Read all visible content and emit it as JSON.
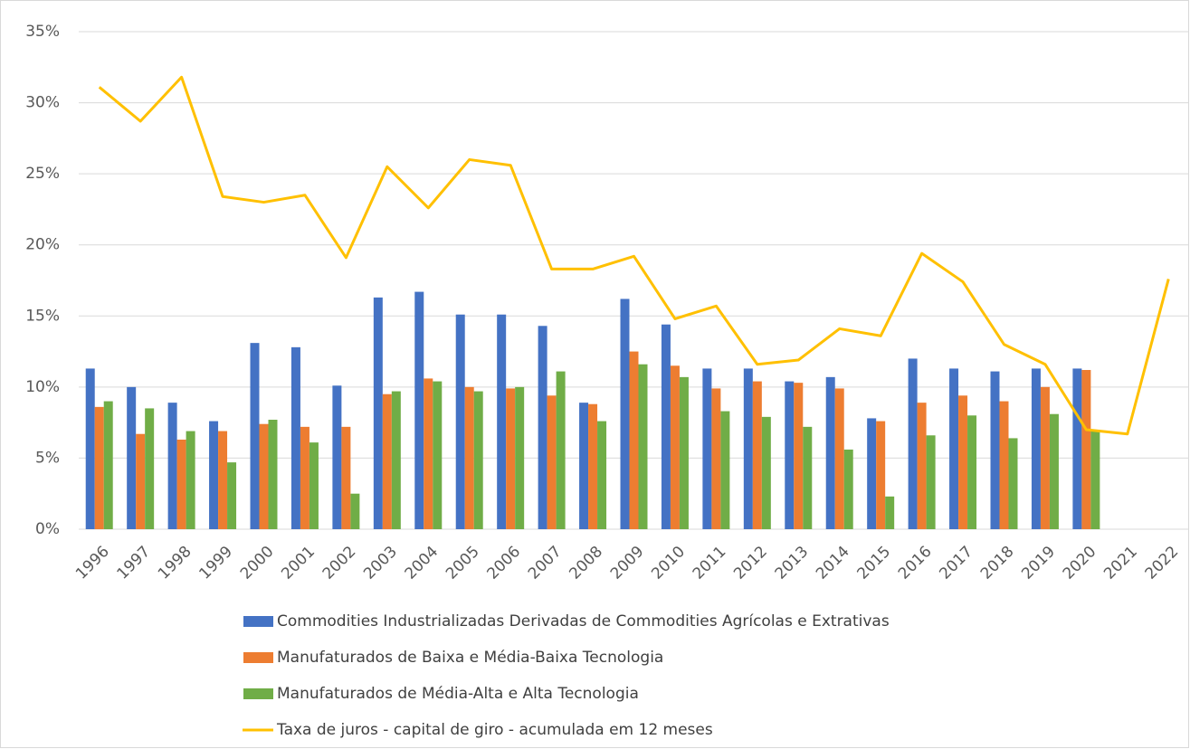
{
  "chart_data": {
    "type": "bar_line",
    "categories": [
      "1996",
      "1997",
      "1998",
      "1999",
      "2000",
      "2001",
      "2002",
      "2003",
      "2004",
      "2005",
      "2006",
      "2007",
      "2008",
      "2009",
      "2010",
      "2011",
      "2012",
      "2013",
      "2014",
      "2015",
      "2016",
      "2017",
      "2018",
      "2019",
      "2020",
      "2021",
      "2022"
    ],
    "series": [
      {
        "name": "Commodities Industrializadas Derivadas de Commodities Agrícolas e Extrativas",
        "color": "#4472c4",
        "kind": "bar",
        "values": [
          11.3,
          10.0,
          8.9,
          7.6,
          13.1,
          12.8,
          10.1,
          16.3,
          16.7,
          15.1,
          15.1,
          14.3,
          8.9,
          16.2,
          14.4,
          11.3,
          11.3,
          10.4,
          10.7,
          7.8,
          12.0,
          11.3,
          11.1,
          11.3,
          11.3,
          null,
          null
        ]
      },
      {
        "name": "Manufaturados de Baixa e Média-Baixa Tecnologia",
        "color": "#ed7d31",
        "kind": "bar",
        "values": [
          8.6,
          6.7,
          6.3,
          6.9,
          7.4,
          7.2,
          7.2,
          9.5,
          10.6,
          10.0,
          9.9,
          9.4,
          8.8,
          12.5,
          11.5,
          9.9,
          10.4,
          10.3,
          9.9,
          7.6,
          8.9,
          9.4,
          9.0,
          10.0,
          11.2,
          null,
          null
        ]
      },
      {
        "name": "Manufaturados de Média-Alta e Alta Tecnologia",
        "color": "#70ad47",
        "kind": "bar",
        "values": [
          9.0,
          8.5,
          6.9,
          4.7,
          7.7,
          6.1,
          2.5,
          9.7,
          10.4,
          9.7,
          10.0,
          11.1,
          7.6,
          11.6,
          10.7,
          8.3,
          7.9,
          7.2,
          5.6,
          2.3,
          6.6,
          8.0,
          6.4,
          8.1,
          7.0,
          null,
          null
        ]
      },
      {
        "name": "Taxa de juros - capital de giro - acumulada em 12 meses",
        "color": "#ffc000",
        "kind": "line",
        "values": [
          31.1,
          28.7,
          31.8,
          23.4,
          23.0,
          23.5,
          19.1,
          25.5,
          22.6,
          26.0,
          25.6,
          18.3,
          18.3,
          19.2,
          14.8,
          15.7,
          11.6,
          11.9,
          14.1,
          13.6,
          19.4,
          17.4,
          13.0,
          11.6,
          7.0,
          6.7,
          17.6
        ]
      }
    ],
    "ylim": [
      0,
      35
    ],
    "yticks": [
      {
        "value": 0,
        "label": "0%"
      },
      {
        "value": 5,
        "label": "5%"
      },
      {
        "value": 10,
        "label": "10%"
      },
      {
        "value": 15,
        "label": "15%"
      },
      {
        "value": 20,
        "label": "20%"
      },
      {
        "value": 25,
        "label": "25%"
      },
      {
        "value": 30,
        "label": "30%"
      },
      {
        "value": 35,
        "label": "35%"
      }
    ],
    "grid": true,
    "legend": "bottom"
  }
}
